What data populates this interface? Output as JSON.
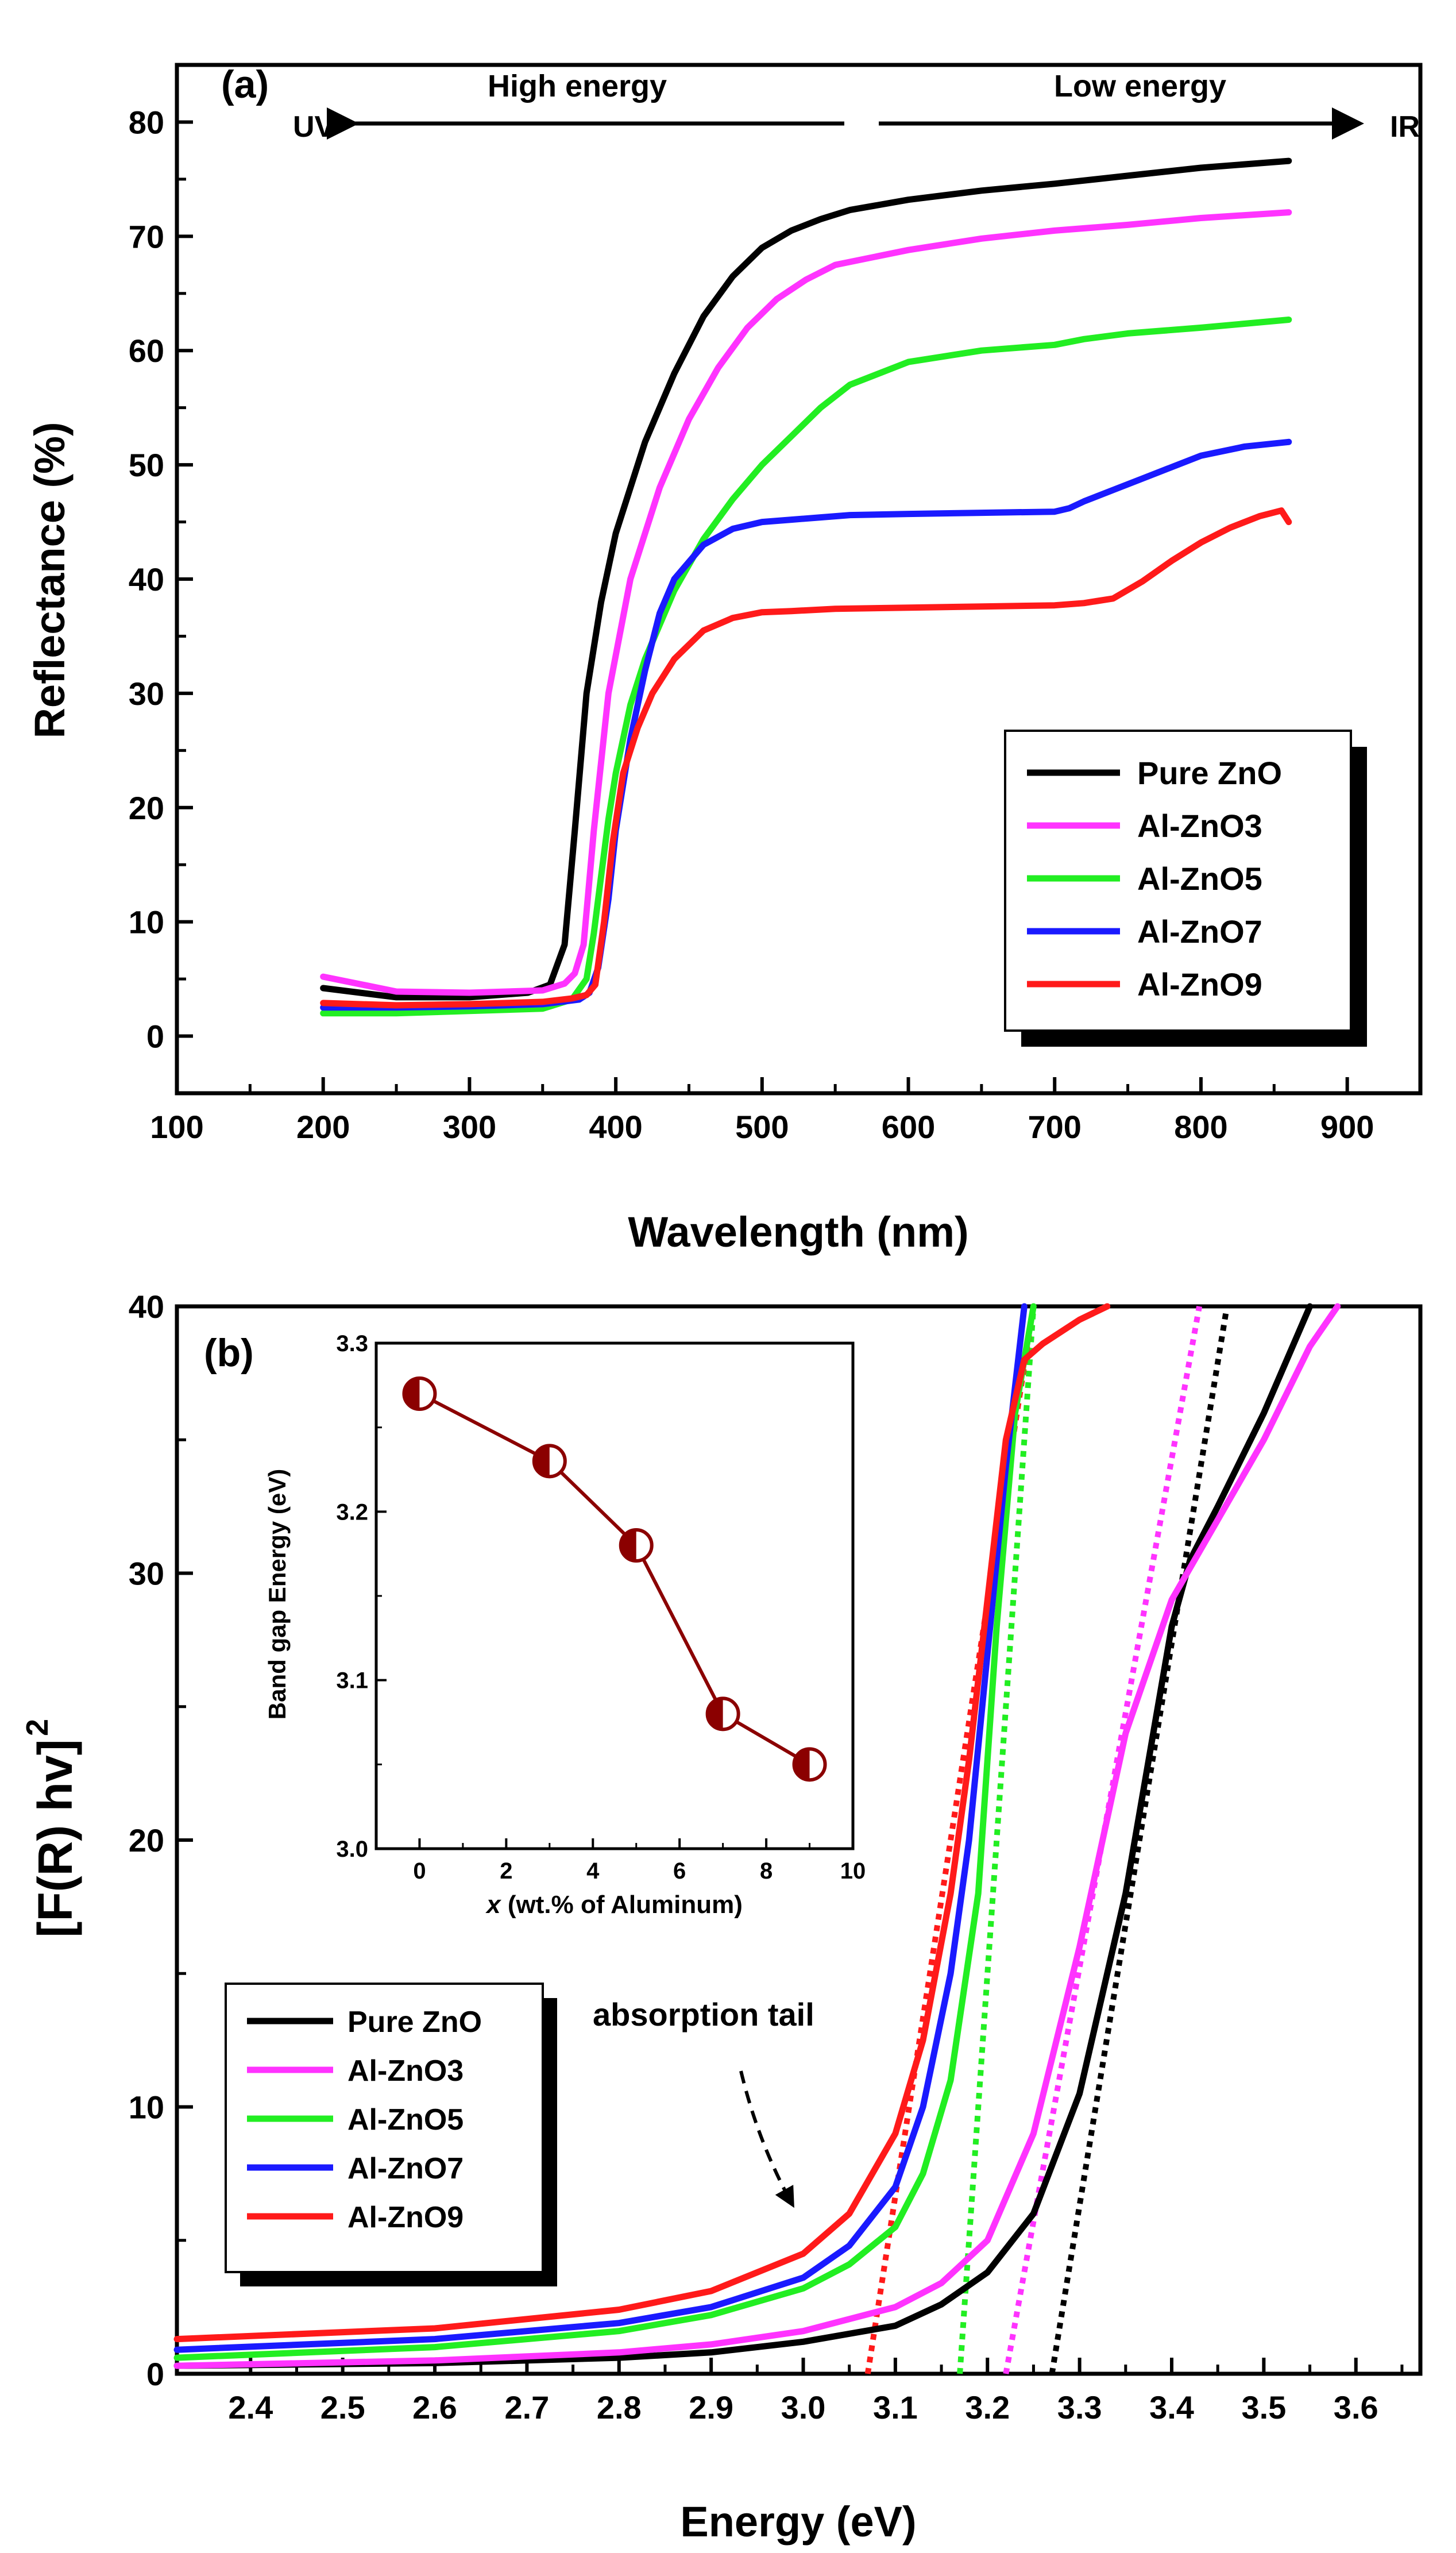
{
  "chart_data": [
    {
      "type": "line",
      "panel_label": "(a)",
      "title": "",
      "xlabel": "Wavelength (nm)",
      "ylabel": "Reflectance (%)",
      "xlim": [
        100,
        950
      ],
      "ylim": [
        -5,
        85
      ],
      "xticks": [
        100,
        200,
        300,
        400,
        500,
        600,
        700,
        800,
        900
      ],
      "yticks": [
        0,
        10,
        20,
        30,
        40,
        50,
        60,
        70,
        80
      ],
      "annotations": {
        "uv": "UV",
        "ir": "IR",
        "high": "High energy",
        "low": "Low energy"
      },
      "legend_position": "bottom-right",
      "series": [
        {
          "name": "Pure ZnO",
          "color": "#000000",
          "x": [
            200,
            250,
            300,
            340,
            355,
            365,
            372,
            380,
            390,
            400,
            420,
            440,
            460,
            480,
            500,
            520,
            540,
            560,
            600,
            650,
            700,
            750,
            800,
            860
          ],
          "y": [
            4.2,
            3.4,
            3.4,
            3.8,
            4.5,
            8,
            18,
            30,
            38,
            44,
            52,
            58,
            63,
            66.5,
            69,
            70.5,
            71.5,
            72.3,
            73.2,
            74,
            74.6,
            75.3,
            76,
            76.6
          ]
        },
        {
          "name": "Al-ZnO3",
          "color": "#ff33ff",
          "x": [
            200,
            250,
            300,
            350,
            365,
            372,
            378,
            385,
            395,
            410,
            430,
            450,
            470,
            490,
            510,
            530,
            550,
            600,
            650,
            700,
            750,
            800,
            860
          ],
          "y": [
            5.2,
            3.9,
            3.8,
            4,
            4.6,
            5.5,
            8,
            18,
            30,
            40,
            48,
            54,
            58.5,
            62,
            64.5,
            66.2,
            67.5,
            68.8,
            69.8,
            70.5,
            71,
            71.6,
            72.1
          ]
        },
        {
          "name": "Al-ZnO5",
          "color": "#22ee22",
          "x": [
            200,
            250,
            300,
            350,
            370,
            380,
            385,
            390,
            395,
            400,
            410,
            420,
            440,
            460,
            480,
            500,
            520,
            540,
            560,
            600,
            650,
            700,
            720,
            750,
            800,
            860
          ],
          "y": [
            2,
            2,
            2.2,
            2.4,
            3.2,
            5,
            9,
            14,
            19,
            23,
            29,
            33,
            39,
            43.5,
            47,
            50,
            52.5,
            55,
            57,
            59,
            60,
            60.5,
            61,
            61.5,
            62,
            62.7
          ]
        },
        {
          "name": "Al-ZnO7",
          "color": "#1a1aff",
          "x": [
            200,
            250,
            300,
            350,
            375,
            382,
            388,
            395,
            400,
            410,
            420,
            430,
            440,
            460,
            480,
            500,
            520,
            540,
            560,
            600,
            650,
            700,
            710,
            720,
            740,
            760,
            780,
            800,
            830,
            860
          ],
          "y": [
            2.5,
            2.5,
            2.6,
            2.8,
            3.2,
            3.8,
            6,
            12,
            18,
            26,
            32,
            37,
            40,
            43,
            44.4,
            45,
            45.2,
            45.4,
            45.6,
            45.7,
            45.8,
            45.9,
            46.2,
            46.8,
            47.8,
            48.8,
            49.8,
            50.8,
            51.6,
            52
          ]
        },
        {
          "name": "Al-ZnO9",
          "color": "#ff1a1a",
          "x": [
            200,
            250,
            300,
            350,
            370,
            380,
            386,
            392,
            398,
            405,
            415,
            425,
            440,
            460,
            480,
            500,
            520,
            550,
            600,
            650,
            700,
            720,
            740,
            760,
            780,
            800,
            820,
            840,
            855,
            860
          ],
          "y": [
            2.9,
            2.7,
            2.8,
            3,
            3.3,
            3.6,
            4.5,
            10,
            17,
            23,
            27,
            30,
            33,
            35.5,
            36.6,
            37.1,
            37.2,
            37.4,
            37.5,
            37.6,
            37.7,
            37.9,
            38.3,
            39.8,
            41.6,
            43.2,
            44.5,
            45.5,
            46,
            45
          ]
        }
      ]
    },
    {
      "type": "line",
      "panel_label": "(b)",
      "title": "",
      "xlabel": "Energy (eV)",
      "ylabel": "[F(R) hv]",
      "ylabel_superscript": "2",
      "xlim": [
        2.32,
        3.67
      ],
      "ylim": [
        0,
        40
      ],
      "xticks": [
        2.4,
        2.5,
        2.6,
        2.7,
        2.8,
        2.9,
        3.0,
        3.1,
        3.2,
        3.3,
        3.4,
        3.5,
        3.6
      ],
      "xtick_labels": [
        "2.4",
        "2.5",
        "2.6",
        "2.7",
        "2.8",
        "2.9",
        "3.0",
        "3.1",
        "3.2",
        "3.3",
        "3.4",
        "3.5",
        "3.6"
      ],
      "yticks": [
        0,
        10,
        20,
        30,
        40
      ],
      "annotation": "absorption tail",
      "legend_position": "lower-left",
      "series": [
        {
          "name": "Pure ZnO",
          "color": "#000000",
          "x": [
            2.32,
            2.6,
            2.8,
            2.9,
            3.0,
            3.1,
            3.15,
            3.2,
            3.25,
            3.3,
            3.35,
            3.38,
            3.4,
            3.42,
            3.45,
            3.5,
            3.55
          ],
          "y": [
            0.3,
            0.4,
            0.6,
            0.8,
            1.2,
            1.8,
            2.6,
            3.8,
            6,
            10.5,
            18,
            24,
            28,
            30.5,
            32.5,
            36,
            40
          ]
        },
        {
          "name": "Al-ZnO3",
          "color": "#ff33ff",
          "x": [
            2.32,
            2.6,
            2.8,
            2.9,
            3.0,
            3.1,
            3.15,
            3.2,
            3.25,
            3.3,
            3.35,
            3.4,
            3.45,
            3.5,
            3.55,
            3.58
          ],
          "y": [
            0.3,
            0.5,
            0.8,
            1.1,
            1.6,
            2.5,
            3.4,
            5,
            9,
            16,
            24,
            29,
            32,
            35,
            38.5,
            40
          ]
        },
        {
          "name": "Al-ZnO5",
          "color": "#22ee22",
          "x": [
            2.32,
            2.6,
            2.8,
            2.9,
            3.0,
            3.05,
            3.1,
            3.13,
            3.16,
            3.19,
            3.21,
            3.23,
            3.25
          ],
          "y": [
            0.6,
            1,
            1.6,
            2.2,
            3.2,
            4.1,
            5.5,
            7.5,
            11,
            18,
            28,
            36,
            40
          ]
        },
        {
          "name": "Al-ZnO7",
          "color": "#1a1aff",
          "x": [
            2.32,
            2.6,
            2.8,
            2.9,
            3.0,
            3.05,
            3.1,
            3.13,
            3.16,
            3.18,
            3.2,
            3.22,
            3.24
          ],
          "y": [
            0.9,
            1.3,
            1.9,
            2.5,
            3.6,
            4.8,
            7,
            10,
            15,
            20,
            27,
            34,
            40
          ]
        },
        {
          "name": "Al-ZnO9",
          "color": "#ff1a1a",
          "x": [
            2.32,
            2.6,
            2.8,
            2.9,
            3.0,
            3.05,
            3.1,
            3.13,
            3.16,
            3.18,
            3.2,
            3.22,
            3.24,
            3.26,
            3.3,
            3.33
          ],
          "y": [
            1.3,
            1.7,
            2.4,
            3.1,
            4.5,
            6,
            9,
            12.5,
            18,
            23,
            29,
            35,
            38,
            38.6,
            39.5,
            40
          ]
        }
      ],
      "tangent_lines": [
        {
          "name": "Pure ZnO fit",
          "color": "#000000",
          "x": [
            3.27,
            3.46
          ],
          "y": [
            0,
            40
          ]
        },
        {
          "name": "Al-ZnO3 fit",
          "color": "#ff33ff",
          "x": [
            3.22,
            3.43
          ],
          "y": [
            0,
            40
          ]
        },
        {
          "name": "Al-ZnO5 fit",
          "color": "#22ee22",
          "x": [
            3.17,
            3.25
          ],
          "y": [
            0,
            40
          ]
        },
        {
          "name": "Al-ZnO9 fit",
          "color": "#ff1a1a",
          "x": [
            3.07,
            3.25
          ],
          "y": [
            0,
            40
          ]
        }
      ],
      "inset": {
        "type": "scatter",
        "xlabel_var": "x",
        "xlabel_rest": " (wt.% of Aluminum)",
        "ylabel": "Band gap Energy (eV)",
        "xlim": [
          -1,
          10
        ],
        "ylim": [
          3.0,
          3.3
        ],
        "xticks": [
          0,
          2,
          4,
          6,
          8,
          10
        ],
        "yticks": [
          3.0,
          3.1,
          3.2,
          3.3
        ],
        "ytick_labels": [
          "3.0",
          "3.1",
          "3.2",
          "3.3"
        ],
        "color": "#8b0000",
        "x": [
          0,
          3,
          5,
          7,
          9
        ],
        "y": [
          3.27,
          3.23,
          3.18,
          3.08,
          3.05
        ]
      }
    }
  ]
}
